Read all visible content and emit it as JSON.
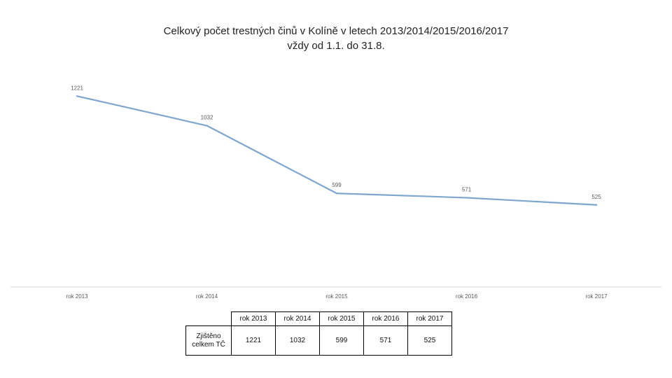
{
  "chart_data": {
    "type": "line",
    "title": "Celkový počet trestných činů v Kolíně v letech 2013/2014/2015/2016/2017",
    "subtitle": "vždy od 1.1. do 31.8.",
    "categories": [
      "rok 2013",
      "rok 2014",
      "rok 2015",
      "rok 2016",
      "rok 2017"
    ],
    "series": [
      {
        "name": "Zjištěno celkem TČ",
        "values": [
          1221,
          1032,
          599,
          571,
          525
        ]
      }
    ],
    "value_labels": [
      "1221",
      "1032",
      "599",
      "571",
      "525"
    ],
    "ylim": [
      0,
      1500
    ],
    "grid": false,
    "legend": "none",
    "line_color": "#7ea6cf"
  },
  "table": {
    "header": [
      "rok 2013",
      "rok 2014",
      "rok 2015",
      "rok 2016",
      "rok 2017"
    ],
    "row_label_line1": "Zjištěno",
    "row_label_line2": "celkem TČ",
    "values": [
      "1221",
      "1032",
      "599",
      "571",
      "525"
    ]
  }
}
